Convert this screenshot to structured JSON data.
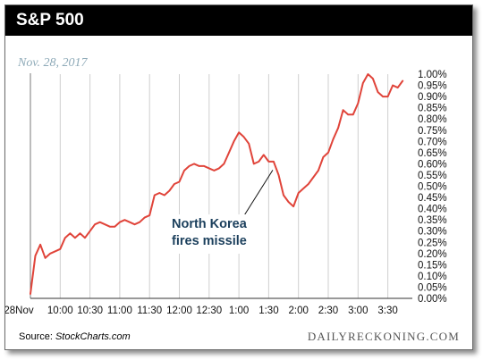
{
  "header": {
    "title": "S&P 500"
  },
  "date_label": "Nov. 28, 2017",
  "source": {
    "prefix": "Source: ",
    "name": "StockCharts.com"
  },
  "brand": "DAILYRECKONING.COM",
  "colors": {
    "line": "#e0443a",
    "header_bg": "#000000",
    "annotation_text": "#1b3f5c",
    "grid": "#cfcfcf"
  },
  "chart_data": {
    "type": "line",
    "title": "S&P 500",
    "subtitle": "Nov. 28, 2017",
    "x_tick_labels": [
      "28Nov",
      "10:00",
      "10:30",
      "11:00",
      "11:30",
      "12:00",
      "12:30",
      "1:00",
      "1:30",
      "2:00",
      "2:30",
      "3:00",
      "3:30"
    ],
    "y_tick_labels": [
      "1.00%",
      "0.95%",
      "0.90%",
      "0.85%",
      "0.80%",
      "0.75%",
      "0.70%",
      "0.65%",
      "0.60%",
      "0.55%",
      "0.50%",
      "0.45%",
      "0.40%",
      "0.35%",
      "0.30%",
      "0.25%",
      "0.20%",
      "0.15%",
      "0.10%",
      "0.05%",
      "0.00%"
    ],
    "ylim": [
      0,
      1.0
    ],
    "y_unit": "%",
    "grid": "vertical",
    "series": [
      {
        "x": [
          "9:30",
          "9:35",
          "9:40",
          "9:45",
          "9:50",
          "9:55",
          "10:00",
          "10:05",
          "10:10",
          "10:15",
          "10:20",
          "10:25",
          "10:30",
          "10:35",
          "10:40",
          "10:45",
          "10:50",
          "10:55",
          "11:00",
          "11:05",
          "11:10",
          "11:15",
          "11:20",
          "11:25",
          "11:30",
          "11:35",
          "11:40",
          "11:45",
          "11:50",
          "11:55",
          "12:00",
          "12:05",
          "12:10",
          "12:15",
          "12:20",
          "12:25",
          "12:30",
          "12:35",
          "12:40",
          "12:45",
          "12:50",
          "12:55",
          "1:00",
          "1:05",
          "1:10",
          "1:15",
          "1:20",
          "1:25",
          "1:30",
          "1:35",
          "1:40",
          "1:45",
          "1:50",
          "1:55",
          "2:00",
          "2:05",
          "2:10",
          "2:15",
          "2:20",
          "2:25",
          "2:30",
          "2:35",
          "2:40",
          "2:45",
          "2:50",
          "2:55",
          "3:00",
          "3:05",
          "3:10",
          "3:15",
          "3:20",
          "3:25",
          "3:30",
          "3:35",
          "3:40",
          "3:45"
        ],
        "values": [
          0.02,
          0.19,
          0.24,
          0.18,
          0.2,
          0.21,
          0.22,
          0.27,
          0.29,
          0.27,
          0.29,
          0.27,
          0.3,
          0.33,
          0.34,
          0.33,
          0.32,
          0.32,
          0.34,
          0.35,
          0.34,
          0.33,
          0.34,
          0.36,
          0.37,
          0.46,
          0.47,
          0.46,
          0.48,
          0.51,
          0.52,
          0.57,
          0.59,
          0.6,
          0.59,
          0.59,
          0.58,
          0.57,
          0.58,
          0.6,
          0.65,
          0.7,
          0.74,
          0.72,
          0.69,
          0.6,
          0.61,
          0.64,
          0.61,
          0.61,
          0.55,
          0.46,
          0.43,
          0.41,
          0.47,
          0.49,
          0.51,
          0.54,
          0.57,
          0.63,
          0.65,
          0.71,
          0.76,
          0.84,
          0.82,
          0.82,
          0.87,
          0.96,
          1.0,
          0.98,
          0.92,
          0.9,
          0.9,
          0.95,
          0.94,
          0.97
        ]
      }
    ],
    "annotations": [
      {
        "lines": [
          "North Korea",
          "fires missile"
        ],
        "x": "1:35",
        "y": 0.6
      }
    ]
  }
}
